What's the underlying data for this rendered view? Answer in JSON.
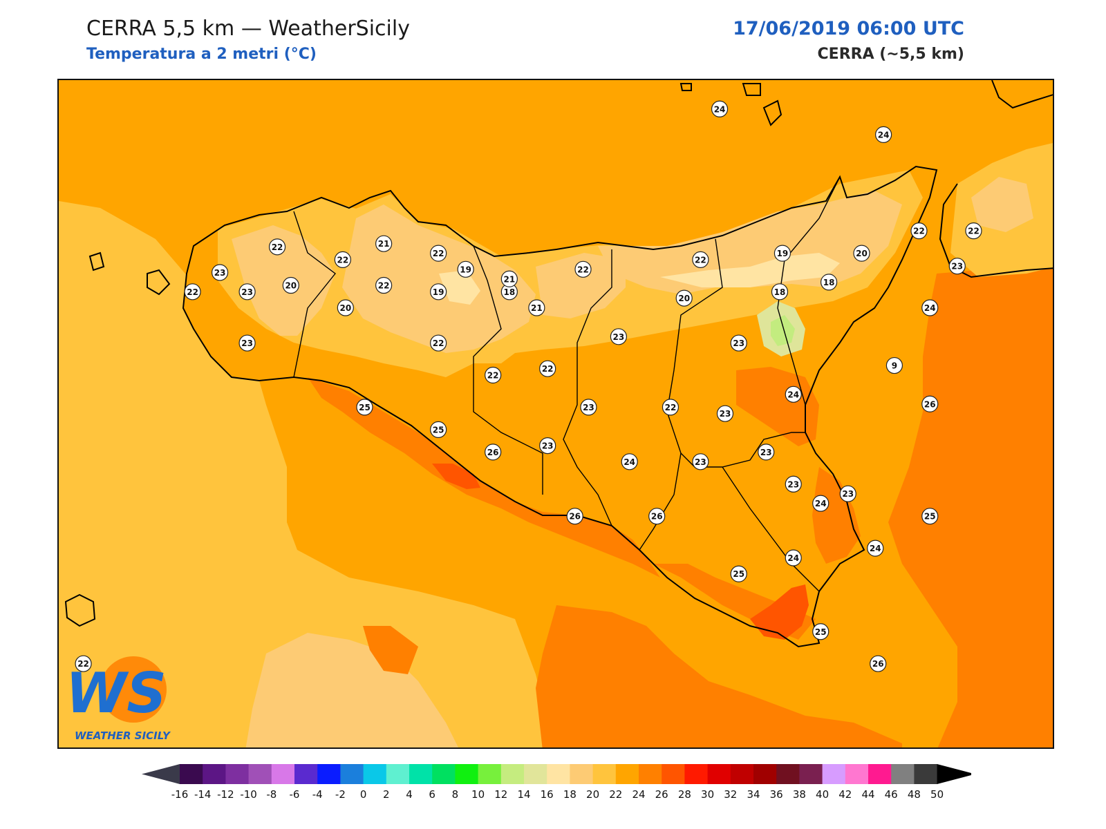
{
  "header": {
    "title": "CERRA 5,5 km — WeatherSicily",
    "subtitle": "Temperatura a 2 metri (°C)",
    "datetime": "17/06/2019 06:00 UTC",
    "model": "CERRA (~5,5 km)"
  },
  "logo": {
    "letters": "WS",
    "name": "WEATHER SICILY"
  },
  "colors": {
    "sea_mid": "#FFA500",
    "sea_warm_west": "#FFC43D",
    "sea_cool_southwest": "#FDCB74",
    "sea_hot_southeast": "#FF8000",
    "land_base": "#FFA500",
    "land_mild": "#FFC43D",
    "land_cool": "#FDCB74",
    "land_coolest": "#FFE4A3",
    "coast_hot": "#FF8000",
    "coast_hottest": "#FF5500",
    "etna_mild": "#DFE59A",
    "etna_cold": "#C3EC7F",
    "coastline": "#000000"
  },
  "colorbar": {
    "ticks": [
      "-16",
      "-14",
      "-12",
      "-10",
      "-8",
      "-6",
      "-4",
      "-2",
      "0",
      "2",
      "4",
      "6",
      "8",
      "10",
      "12",
      "14",
      "16",
      "18",
      "20",
      "22",
      "24",
      "26",
      "28",
      "30",
      "32",
      "34",
      "36",
      "38",
      "40",
      "42",
      "44",
      "46",
      "48",
      "50"
    ],
    "colors": [
      "#3a0a4f",
      "#5c1685",
      "#7e2fa0",
      "#a050b7",
      "#d878e8",
      "#5a2acf",
      "#0a1cff",
      "#1b7fdc",
      "#0ac8e8",
      "#5ff0d0",
      "#00e2a8",
      "#00e060",
      "#10f010",
      "#77f03c",
      "#c5ec7f",
      "#e1e59a",
      "#ffe4a3",
      "#fdcb74",
      "#ffc43d",
      "#ffa500",
      "#ff8000",
      "#ff5500",
      "#ff1a00",
      "#e00000",
      "#c00000",
      "#a00000",
      "#701020",
      "#7a2050",
      "#d79cff",
      "#ff77d0",
      "#ff1a90",
      "#808080",
      "#3a3a3a"
    ],
    "min_color": "#3a3a4a",
    "max_color": "#000000"
  },
  "stations": [
    {
      "v": 24,
      "lat": 38.55,
      "lon": 14.35
    },
    {
      "v": 24,
      "lat": 38.47,
      "lon": 14.95
    },
    {
      "v": 22,
      "lat": 38.12,
      "lon": 12.73
    },
    {
      "v": 21,
      "lat": 38.13,
      "lon": 13.12
    },
    {
      "v": 22,
      "lat": 38.1,
      "lon": 13.32
    },
    {
      "v": 22,
      "lat": 38.08,
      "lon": 12.97
    },
    {
      "v": 23,
      "lat": 38.04,
      "lon": 12.52
    },
    {
      "v": 20,
      "lat": 38.0,
      "lon": 12.78
    },
    {
      "v": 22,
      "lat": 37.98,
      "lon": 12.42
    },
    {
      "v": 23,
      "lat": 37.98,
      "lon": 12.62
    },
    {
      "v": 22,
      "lat": 38.0,
      "lon": 13.12
    },
    {
      "v": 19,
      "lat": 38.05,
      "lon": 13.42
    },
    {
      "v": 19,
      "lat": 37.98,
      "lon": 13.32
    },
    {
      "v": 18,
      "lat": 37.98,
      "lon": 13.58
    },
    {
      "v": 21,
      "lat": 38.02,
      "lon": 13.58
    },
    {
      "v": 22,
      "lat": 38.05,
      "lon": 13.85
    },
    {
      "v": 21,
      "lat": 37.93,
      "lon": 13.68
    },
    {
      "v": 20,
      "lat": 37.93,
      "lon": 12.98
    },
    {
      "v": 23,
      "lat": 37.82,
      "lon": 12.62
    },
    {
      "v": 22,
      "lat": 37.82,
      "lon": 13.32
    },
    {
      "v": 22,
      "lat": 38.08,
      "lon": 14.28
    },
    {
      "v": 19,
      "lat": 38.1,
      "lon": 14.58
    },
    {
      "v": 20,
      "lat": 38.1,
      "lon": 14.87
    },
    {
      "v": 22,
      "lat": 38.17,
      "lon": 15.08
    },
    {
      "v": 22,
      "lat": 38.17,
      "lon": 15.28
    },
    {
      "v": 23,
      "lat": 38.06,
      "lon": 15.22
    },
    {
      "v": 18,
      "lat": 38.01,
      "lon": 14.75
    },
    {
      "v": 18,
      "lat": 37.98,
      "lon": 14.57
    },
    {
      "v": 24,
      "lat": 37.93,
      "lon": 15.12
    },
    {
      "v": 20,
      "lat": 37.96,
      "lon": 14.22
    },
    {
      "v": 9,
      "lat": 37.75,
      "lon": 14.99
    },
    {
      "v": 23,
      "lat": 37.84,
      "lon": 13.98
    },
    {
      "v": 23,
      "lat": 37.82,
      "lon": 14.42
    },
    {
      "v": 24,
      "lat": 37.66,
      "lon": 14.62
    },
    {
      "v": 26,
      "lat": 37.63,
      "lon": 15.12
    },
    {
      "v": 25,
      "lat": 37.62,
      "lon": 13.05
    },
    {
      "v": 22,
      "lat": 37.72,
      "lon": 13.52
    },
    {
      "v": 22,
      "lat": 37.74,
      "lon": 13.72
    },
    {
      "v": 23,
      "lat": 37.62,
      "lon": 13.87
    },
    {
      "v": 22,
      "lat": 37.62,
      "lon": 14.17
    },
    {
      "v": 23,
      "lat": 37.6,
      "lon": 14.37
    },
    {
      "v": 25,
      "lat": 37.55,
      "lon": 13.32
    },
    {
      "v": 26,
      "lat": 37.48,
      "lon": 13.52
    },
    {
      "v": 23,
      "lat": 37.5,
      "lon": 13.72
    },
    {
      "v": 24,
      "lat": 37.45,
      "lon": 14.02
    },
    {
      "v": 23,
      "lat": 37.45,
      "lon": 14.28
    },
    {
      "v": 23,
      "lat": 37.48,
      "lon": 14.52
    },
    {
      "v": 23,
      "lat": 37.38,
      "lon": 14.62
    },
    {
      "v": 23,
      "lat": 37.35,
      "lon": 14.82
    },
    {
      "v": 24,
      "lat": 37.32,
      "lon": 14.72
    },
    {
      "v": 25,
      "lat": 37.28,
      "lon": 15.12
    },
    {
      "v": 26,
      "lat": 37.28,
      "lon": 13.82
    },
    {
      "v": 26,
      "lat": 37.28,
      "lon": 14.12
    },
    {
      "v": 24,
      "lat": 37.15,
      "lon": 14.62
    },
    {
      "v": 24,
      "lat": 37.18,
      "lon": 14.92
    },
    {
      "v": 25,
      "lat": 37.1,
      "lon": 14.42
    },
    {
      "v": 25,
      "lat": 36.92,
      "lon": 14.72
    },
    {
      "v": 26,
      "lat": 36.82,
      "lon": 14.93
    },
    {
      "v": 22,
      "lat": 36.82,
      "lon": 12.02
    }
  ]
}
